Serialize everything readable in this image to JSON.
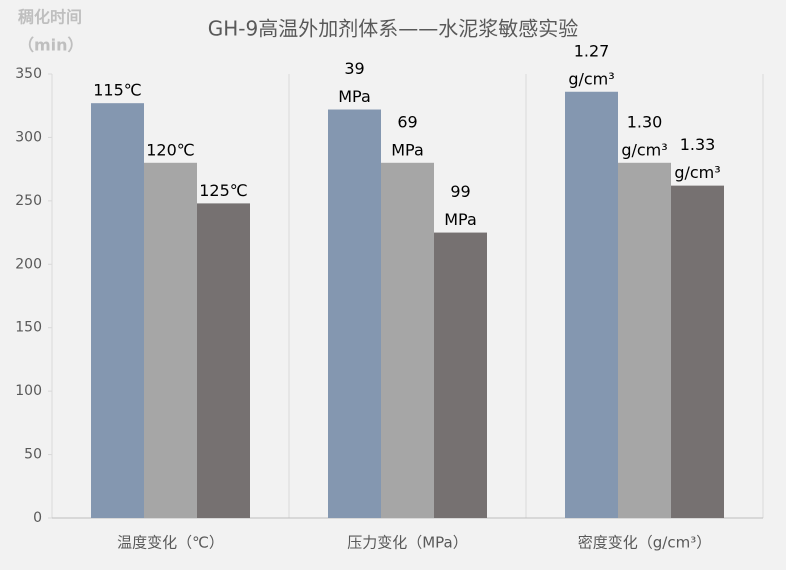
{
  "chart_data": {
    "type": "bar",
    "title": "GH-9高温外加剂体系——水泥浆敏感实验",
    "y_title": [
      "稠化时间",
      "（min）"
    ],
    "categories": [
      "温度变化（℃）",
      "压力变化（MPa）",
      "密度变化（g/cm³）"
    ],
    "colors": [
      "#8497b0",
      "#a6a6a6",
      "#767171"
    ],
    "groups": [
      {
        "bars": [
          {
            "label": [
              "115℃"
            ],
            "value": 327
          },
          {
            "label": [
              "120℃"
            ],
            "value": 280
          },
          {
            "label": [
              "125℃"
            ],
            "value": 248
          }
        ]
      },
      {
        "bars": [
          {
            "label": [
              "39",
              "MPa"
            ],
            "value": 322
          },
          {
            "label": [
              "69",
              "MPa"
            ],
            "value": 280
          },
          {
            "label": [
              "99",
              "MPa"
            ],
            "value": 225
          }
        ]
      },
      {
        "bars": [
          {
            "label": [
              "1.27",
              "g/cm³"
            ],
            "value": 336
          },
          {
            "label": [
              "1.30",
              "g/cm³"
            ],
            "value": 280
          },
          {
            "label": [
              "1.33",
              "g/cm³"
            ],
            "value": 262
          }
        ]
      }
    ],
    "ylim": [
      0,
      350
    ],
    "yticks": [
      0,
      50,
      100,
      150,
      200,
      250,
      300,
      350
    ]
  }
}
